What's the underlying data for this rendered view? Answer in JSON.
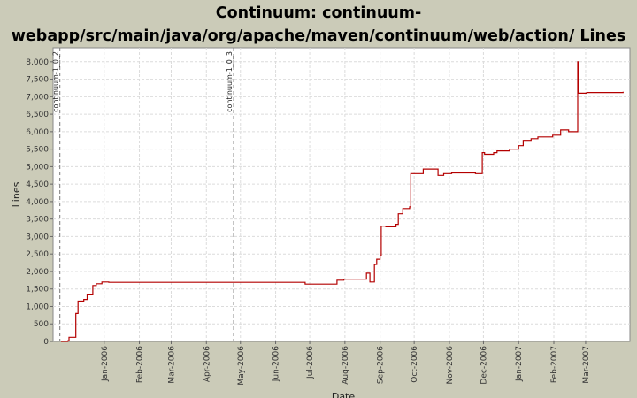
{
  "chart_data": {
    "type": "line",
    "title": "Continuum: continuum-webapp/src/main/java/org/apache/maven/continuum/web/action/ Lines of Code",
    "xlabel": "Date",
    "ylabel": "Lines",
    "ylim": [
      0,
      8400
    ],
    "xlim": [
      "2005-11-17",
      "2007-04-09"
    ],
    "y_ticks": [
      "0",
      "500",
      "1,000",
      "1,500",
      "2,000",
      "2,500",
      "3,000",
      "3,500",
      "4,000",
      "4,500",
      "5,000",
      "5,500",
      "6,000",
      "6,500",
      "7,000",
      "7,500",
      "8,000"
    ],
    "x_ticks": [
      {
        "date": "2006-01-01",
        "label": "Jan-2006"
      },
      {
        "date": "2006-02-01",
        "label": "Feb-2006"
      },
      {
        "date": "2006-03-01",
        "label": "Mar-2006"
      },
      {
        "date": "2006-04-01",
        "label": "Apr-2006"
      },
      {
        "date": "2006-05-01",
        "label": "May-2006"
      },
      {
        "date": "2006-06-01",
        "label": "Jun-2006"
      },
      {
        "date": "2006-07-01",
        "label": "Jul-2006"
      },
      {
        "date": "2006-08-01",
        "label": "Aug-2006"
      },
      {
        "date": "2006-09-01",
        "label": "Sep-2006"
      },
      {
        "date": "2006-10-01",
        "label": "Oct-2006"
      },
      {
        "date": "2006-11-01",
        "label": "Nov-2006"
      },
      {
        "date": "2006-12-01",
        "label": "Dec-2006"
      },
      {
        "date": "2007-01-01",
        "label": "Jan-2007"
      },
      {
        "date": "2007-02-01",
        "label": "Feb-2007"
      },
      {
        "date": "2007-03-01",
        "label": "Mar-2007"
      }
    ],
    "markers": [
      {
        "date": "2005-11-23",
        "label": "continuum-1_0_2"
      },
      {
        "date": "2006-04-25",
        "label": "continuum-1_0_3"
      }
    ],
    "series": [
      {
        "color": "#b40000",
        "points": [
          [
            "2005-11-24",
            0
          ],
          [
            "2005-11-30",
            20
          ],
          [
            "2005-12-01",
            120
          ],
          [
            "2005-12-05",
            120
          ],
          [
            "2005-12-07",
            800
          ],
          [
            "2005-12-09",
            1150
          ],
          [
            "2005-12-14",
            1200
          ],
          [
            "2005-12-17",
            1350
          ],
          [
            "2005-12-22",
            1600
          ],
          [
            "2005-12-25",
            1650
          ],
          [
            "2005-12-30",
            1700
          ],
          [
            "2006-01-05",
            1690
          ],
          [
            "2006-06-26",
            1690
          ],
          [
            "2006-06-27",
            1640
          ],
          [
            "2006-07-23",
            1640
          ],
          [
            "2006-07-25",
            1750
          ],
          [
            "2006-07-31",
            1780
          ],
          [
            "2006-08-19",
            1780
          ],
          [
            "2006-08-20",
            1950
          ],
          [
            "2006-08-23",
            1700
          ],
          [
            "2006-08-26",
            1700
          ],
          [
            "2006-08-27",
            2200
          ],
          [
            "2006-08-29",
            2350
          ],
          [
            "2006-09-01",
            2450
          ],
          [
            "2006-09-02",
            3300
          ],
          [
            "2006-09-06",
            3280
          ],
          [
            "2006-09-15",
            3350
          ],
          [
            "2006-09-17",
            3650
          ],
          [
            "2006-09-21",
            3800
          ],
          [
            "2006-09-27",
            3850
          ],
          [
            "2006-09-28",
            4800
          ],
          [
            "2006-10-09",
            4930
          ],
          [
            "2006-10-22",
            4750
          ],
          [
            "2006-10-27",
            4800
          ],
          [
            "2006-11-03",
            4820
          ],
          [
            "2006-11-24",
            4800
          ],
          [
            "2006-11-30",
            5400
          ],
          [
            "2006-12-02",
            5350
          ],
          [
            "2006-12-10",
            5400
          ],
          [
            "2006-12-13",
            5450
          ],
          [
            "2006-12-24",
            5500
          ],
          [
            "2007-01-01",
            5600
          ],
          [
            "2007-01-05",
            5750
          ],
          [
            "2007-01-12",
            5800
          ],
          [
            "2007-01-18",
            5850
          ],
          [
            "2007-01-31",
            5900
          ],
          [
            "2007-02-07",
            6050
          ],
          [
            "2007-02-14",
            6000
          ],
          [
            "2007-02-22",
            8000
          ],
          [
            "2007-02-23",
            7100
          ],
          [
            "2007-03-02",
            7120
          ],
          [
            "2007-04-03",
            7140
          ]
        ]
      }
    ]
  }
}
